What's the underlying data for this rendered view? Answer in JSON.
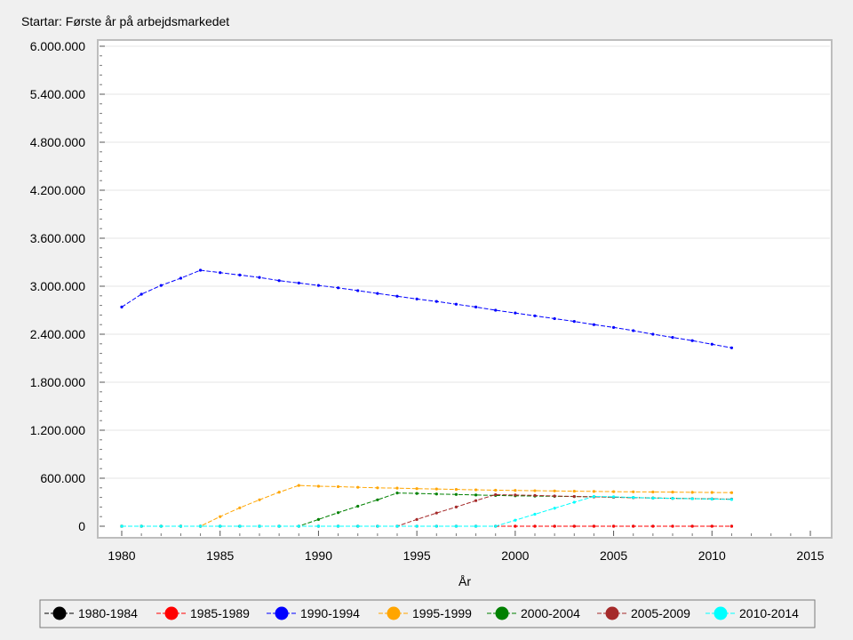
{
  "chart_data": {
    "type": "line",
    "title": "Startar: Første år på arbejdsmarkedet",
    "xlabel": "År",
    "ylabel": "",
    "xlim": [
      1978,
      2016
    ],
    "ylim": [
      0,
      6000000
    ],
    "xticks": [
      1980,
      1985,
      1990,
      1995,
      2000,
      2005,
      2010,
      2015
    ],
    "xtick_labels": [
      "1980",
      "1985",
      "1990",
      "1995",
      "2000",
      "2005",
      "2010",
      "2015"
    ],
    "yticks": [
      0,
      600000,
      1200000,
      1800000,
      2400000,
      3000000,
      3600000,
      4200000,
      4800000,
      5400000,
      6000000
    ],
    "ytick_labels": [
      "0",
      "600.000",
      "1.200.000",
      "1.800.000",
      "2.400.000",
      "3.000.000",
      "3.600.000",
      "4.200.000",
      "4.800.000",
      "5.400.000",
      "6.000.000"
    ],
    "grid": true,
    "legend_position": "bottom",
    "x": [
      1980,
      1981,
      1982,
      1983,
      1984,
      1985,
      1986,
      1987,
      1988,
      1989,
      1990,
      1991,
      1992,
      1993,
      1994,
      1995,
      1996,
      1997,
      1998,
      1999,
      2000,
      2001,
      2002,
      2003,
      2004,
      2005,
      2006,
      2007,
      2008,
      2009,
      2010,
      2011
    ],
    "series": [
      {
        "name": "1980-1984",
        "color": "#000000",
        "values": [
          0,
          0,
          0,
          0,
          0,
          0,
          0,
          0,
          0,
          0,
          0,
          0,
          0,
          0,
          0,
          0,
          0,
          0,
          0,
          0,
          0,
          0,
          0,
          0,
          0,
          0,
          0,
          0,
          0,
          0,
          0,
          0
        ]
      },
      {
        "name": "1985-1989",
        "color": "#ff0000",
        "values": [
          0,
          0,
          0,
          0,
          0,
          0,
          0,
          0,
          0,
          0,
          0,
          0,
          0,
          0,
          0,
          0,
          0,
          0,
          0,
          0,
          0,
          0,
          0,
          0,
          0,
          0,
          0,
          0,
          0,
          0,
          0,
          0
        ]
      },
      {
        "name": "1990-1994",
        "color": "#0000ff",
        "values": [
          2740000,
          2900000,
          3010000,
          3100000,
          3200000,
          3170000,
          3140000,
          3110000,
          3070000,
          3040000,
          3010000,
          2980000,
          2945000,
          2910000,
          2875000,
          2840000,
          2810000,
          2775000,
          2740000,
          2700000,
          2665000,
          2630000,
          2595000,
          2560000,
          2520000,
          2485000,
          2445000,
          2400000,
          2360000,
          2320000,
          2275000,
          2230000
        ]
      },
      {
        "name": "1995-1999",
        "color": "#ffa500",
        "values": [
          0,
          0,
          0,
          0,
          0,
          120000,
          230000,
          330000,
          425000,
          510000,
          500000,
          495000,
          487000,
          480000,
          476000,
          470000,
          465000,
          460000,
          455000,
          450000,
          447000,
          444000,
          441000,
          438000,
          435000,
          432000,
          430000,
          428000,
          426000,
          424000,
          422000,
          420000
        ]
      },
      {
        "name": "2000-2004",
        "color": "#008000",
        "values": [
          0,
          0,
          0,
          0,
          0,
          0,
          0,
          0,
          0,
          0,
          85000,
          170000,
          250000,
          330000,
          415000,
          410000,
          403000,
          397000,
          390000,
          385000,
          380000,
          377000,
          374000,
          371000,
          368000,
          363000,
          358000,
          353000,
          349000,
          345000,
          341000,
          337000
        ]
      },
      {
        "name": "2005-2009",
        "color": "#a52a2a",
        "values": [
          0,
          0,
          0,
          0,
          0,
          0,
          0,
          0,
          0,
          0,
          0,
          0,
          0,
          0,
          0,
          85000,
          165000,
          240000,
          320000,
          395000,
          390000,
          385000,
          378000,
          372000,
          367000,
          362000,
          357000,
          352000,
          348000,
          345000,
          342000,
          339000
        ]
      },
      {
        "name": "2010-2014",
        "color": "#00ffff",
        "values": [
          0,
          0,
          0,
          0,
          0,
          0,
          0,
          0,
          0,
          0,
          0,
          0,
          0,
          0,
          0,
          0,
          0,
          0,
          0,
          0,
          75000,
          150000,
          225000,
          300000,
          372000,
          368000,
          360000,
          352000,
          348000,
          344000,
          340000,
          335000
        ]
      }
    ]
  }
}
